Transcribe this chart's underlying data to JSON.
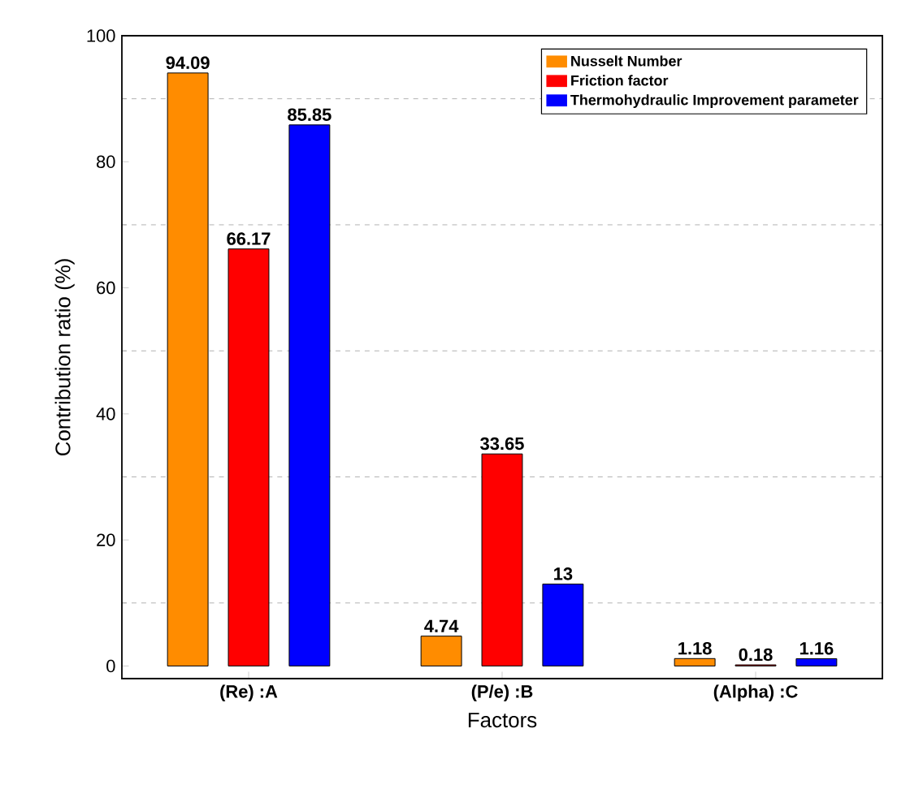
{
  "chart_data": {
    "type": "bar",
    "xlabel": "Factors",
    "ylabel": "Contribution ratio (%)",
    "categories": [
      "(Re) :A",
      "(P/e) :B",
      "(Alpha) :C"
    ],
    "series": [
      {
        "name": "Nusselt Number",
        "color": "#ff8c00",
        "values": [
          94.09,
          4.74,
          1.18
        ],
        "value_labels": [
          "94.09",
          "4.74",
          "1.18"
        ]
      },
      {
        "name": "Friction factor",
        "color": "#ff0000",
        "values": [
          66.17,
          33.65,
          0.18
        ],
        "value_labels": [
          "66.17",
          "33.65",
          "0.18"
        ]
      },
      {
        "name": "Thermohydraulic Improvement parameter",
        "color": "#0000ff",
        "values": [
          85.85,
          13,
          1.16
        ],
        "value_labels": [
          "85.85",
          "13",
          "1.16"
        ]
      }
    ],
    "ylim": [
      -2,
      100
    ],
    "yticks": [
      0,
      20,
      40,
      60,
      80,
      100
    ],
    "grid": "y",
    "legend": "top right"
  }
}
